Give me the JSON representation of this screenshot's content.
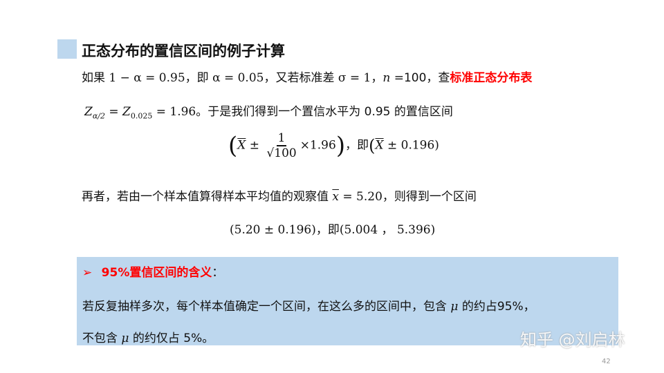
{
  "title": "正态分布的置信区间的例子计算",
  "line1": {
    "a": "如果 ",
    "b": "1 − α = 0.95",
    "c": "，即 ",
    "d": "α = 0.05",
    "e": "，又若标准差 ",
    "f": "σ = 1",
    "g": "，",
    "h": "n",
    "i": " =100，查",
    "j": "标准正态分布表"
  },
  "line2": {
    "a": "Z",
    "a_sub": "α/2",
    "b": " = Z",
    "b_sub": "0.025",
    "c": " = 1.96",
    "d": "。于是我们得到一个置信水平为 0.95 的置信区间"
  },
  "formula1": {
    "open": "(",
    "x": "X",
    "pm": " ± ",
    "num": "1",
    "den": "√100",
    "times": "×1.96",
    "close": ")",
    "sep": "，即",
    "rest_open": "(",
    "rest_x": "X",
    "rest": " ± 0.196)"
  },
  "line3": {
    "a": "再者，若由一个样本值算得样本平均值的观察值 ",
    "b": "x",
    "c": " = 5.20",
    "d": "，则得到一个区间"
  },
  "formula2": {
    "a": "(5.20 ± 0.196)",
    "b": "，即",
    "c": "(5.004 ， 5.396)"
  },
  "box": {
    "bullet": "➢",
    "heading": "95%置信区间的含义",
    "colon": "：",
    "p1a": "若反复抽样多次，每个样本值确定一个区间，在这么多的区间中，包含 ",
    "mu": "μ",
    "p1b": " 的约占95%，",
    "p2a": "不包含 ",
    "p2b": " 的约仅占 5%。"
  },
  "watermark": "知乎 @刘启林",
  "page_number": "42",
  "colors": {
    "accent_box": "#bdd7ee",
    "highlight": "#ff0000"
  }
}
